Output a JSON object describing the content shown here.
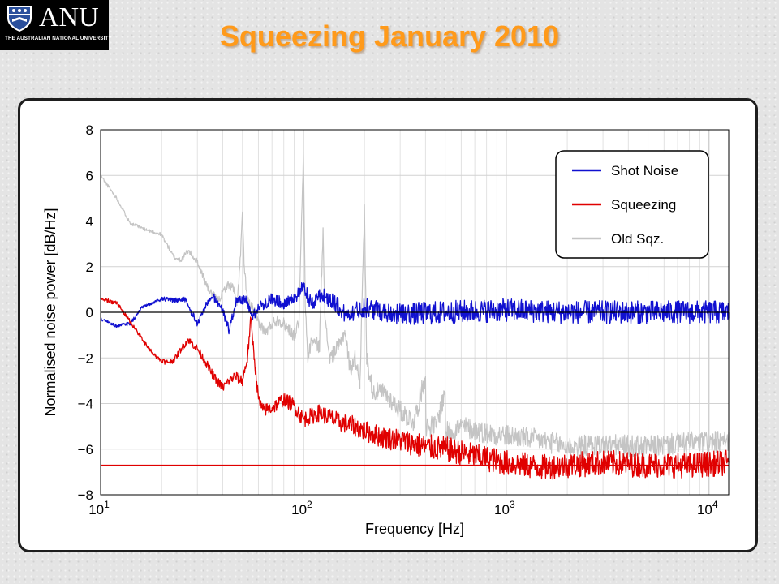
{
  "logo": {
    "name": "ANU",
    "university": "THE AUSTRALIAN NATIONAL UNIVERSITY",
    "colors": {
      "background": "#000000",
      "text": "#ffffff",
      "crest_blue": "#2a4f9c"
    }
  },
  "slide": {
    "title": "Squeezing January 2010",
    "title_color": "#ff9a1a"
  },
  "chart_data": {
    "type": "line",
    "xlabel": "Frequency [Hz]",
    "ylabel": "Normalised noise power [dB/Hz]",
    "xscale": "log",
    "xlim": [
      10,
      12500
    ],
    "ylim": [
      -8,
      8
    ],
    "grid": true,
    "x_ticks": [
      {
        "value": 10,
        "base": "10",
        "exp": "1"
      },
      {
        "value": 100,
        "base": "10",
        "exp": "2"
      },
      {
        "value": 1000,
        "base": "10",
        "exp": "3"
      },
      {
        "value": 10000,
        "base": "10",
        "exp": "4"
      }
    ],
    "y_ticks": [
      {
        "value": 8,
        "label": "8"
      },
      {
        "value": 6,
        "label": "6"
      },
      {
        "value": 4,
        "label": "4"
      },
      {
        "value": 2,
        "label": "2"
      },
      {
        "value": 0,
        "label": "0"
      },
      {
        "value": -2,
        "label": "−2"
      },
      {
        "value": -4,
        "label": "−4"
      },
      {
        "value": -6,
        "label": "−6"
      },
      {
        "value": -8,
        "label": "−8"
      }
    ],
    "reference_lines": [
      {
        "y": 0,
        "color": "#000000"
      },
      {
        "y": -6.7,
        "color": "#e00000"
      }
    ],
    "legend": {
      "position": "top-right",
      "entries": [
        {
          "name": "Shot Noise",
          "color": "#1010d0"
        },
        {
          "name": "Squeezing",
          "color": "#e00000"
        },
        {
          "name": "Old Sqz.",
          "color": "#c4c4c4"
        }
      ]
    },
    "series": [
      {
        "name": "Old Sqz.",
        "color": "#c4c4c4",
        "anchors": [
          [
            10,
            6.0
          ],
          [
            12,
            5.0
          ],
          [
            14,
            3.9
          ],
          [
            17,
            3.6
          ],
          [
            20,
            3.4
          ],
          [
            23,
            2.4
          ],
          [
            25,
            2.3
          ],
          [
            27,
            2.7
          ],
          [
            30,
            2.2
          ],
          [
            34,
            1.0
          ],
          [
            38,
            0.5
          ],
          [
            42,
            1.2
          ],
          [
            45,
            1.1
          ],
          [
            47,
            0.3
          ],
          [
            49,
            2.5
          ],
          [
            50,
            4.4
          ],
          [
            51,
            2.0
          ],
          [
            53,
            0.5
          ],
          [
            56,
            0.2
          ],
          [
            60,
            -0.4
          ],
          [
            65,
            -0.9
          ],
          [
            70,
            -0.5
          ],
          [
            75,
            -0.3
          ],
          [
            80,
            -0.5
          ],
          [
            90,
            -1.0
          ],
          [
            95,
            -0.5
          ],
          [
            100,
            7.0
          ],
          [
            102,
            0.5
          ],
          [
            105,
            -2.0
          ],
          [
            110,
            -1.2
          ],
          [
            120,
            -1.5
          ],
          [
            125,
            3.7
          ],
          [
            128,
            -0.5
          ],
          [
            135,
            -2.0
          ],
          [
            150,
            -1.5
          ],
          [
            160,
            -0.8
          ],
          [
            170,
            -2.5
          ],
          [
            180,
            -2.0
          ],
          [
            190,
            -3.0
          ],
          [
            200,
            4.5
          ],
          [
            205,
            -2.0
          ],
          [
            220,
            -3.5
          ],
          [
            250,
            -3.5
          ],
          [
            300,
            -4.3
          ],
          [
            350,
            -4.8
          ],
          [
            400,
            -2.8
          ],
          [
            402,
            -5.0
          ],
          [
            450,
            -5.0
          ],
          [
            500,
            -3.5
          ],
          [
            502,
            -5.3
          ],
          [
            600,
            -5.0
          ],
          [
            800,
            -5.3
          ],
          [
            1000,
            -5.4
          ],
          [
            1500,
            -5.6
          ],
          [
            2000,
            -5.9
          ],
          [
            3000,
            -5.8
          ],
          [
            5000,
            -5.9
          ],
          [
            8000,
            -5.7
          ],
          [
            12500,
            -5.7
          ]
        ],
        "noise": 0.3
      },
      {
        "name": "Shot Noise",
        "color": "#1010d0",
        "anchors": [
          [
            10,
            -0.3
          ],
          [
            12,
            -0.6
          ],
          [
            14,
            -0.5
          ],
          [
            16,
            0.2
          ],
          [
            18,
            0.4
          ],
          [
            20,
            0.6
          ],
          [
            23,
            0.5
          ],
          [
            26,
            0.6
          ],
          [
            28,
            0.0
          ],
          [
            30,
            -0.5
          ],
          [
            33,
            0.3
          ],
          [
            36,
            0.7
          ],
          [
            40,
            0.1
          ],
          [
            43,
            -0.8
          ],
          [
            47,
            0.6
          ],
          [
            52,
            0.5
          ],
          [
            56,
            -0.2
          ],
          [
            60,
            0.2
          ],
          [
            70,
            0.6
          ],
          [
            80,
            0.4
          ],
          [
            95,
            0.8
          ],
          [
            100,
            1.1
          ],
          [
            110,
            0.3
          ],
          [
            120,
            0.8
          ],
          [
            140,
            0.5
          ],
          [
            160,
            -0.1
          ],
          [
            200,
            0.2
          ],
          [
            300,
            -0.1
          ],
          [
            500,
            0.0
          ],
          [
            1000,
            0.1
          ],
          [
            2000,
            0.0
          ],
          [
            5000,
            0.0
          ],
          [
            12500,
            0.0
          ]
        ],
        "noise": 0.32
      },
      {
        "name": "Squeezing",
        "color": "#e00000",
        "anchors": [
          [
            10,
            0.6
          ],
          [
            12,
            0.4
          ],
          [
            13,
            0.0
          ],
          [
            15,
            -0.8
          ],
          [
            17,
            -1.5
          ],
          [
            19,
            -2.0
          ],
          [
            21,
            -2.2
          ],
          [
            23,
            -2.1
          ],
          [
            25,
            -1.6
          ],
          [
            27,
            -1.2
          ],
          [
            30,
            -1.6
          ],
          [
            33,
            -2.2
          ],
          [
            36,
            -2.8
          ],
          [
            40,
            -3.3
          ],
          [
            43,
            -3.0
          ],
          [
            46,
            -2.8
          ],
          [
            50,
            -3.0
          ],
          [
            53,
            -2.0
          ],
          [
            55,
            -0.3
          ],
          [
            57,
            -1.8
          ],
          [
            60,
            -3.8
          ],
          [
            63,
            -4.3
          ],
          [
            70,
            -4.2
          ],
          [
            80,
            -3.8
          ],
          [
            90,
            -4.1
          ],
          [
            100,
            -4.7
          ],
          [
            120,
            -4.4
          ],
          [
            150,
            -4.8
          ],
          [
            180,
            -5.0
          ],
          [
            200,
            -5.2
          ],
          [
            250,
            -5.5
          ],
          [
            300,
            -5.6
          ],
          [
            400,
            -5.9
          ],
          [
            500,
            -6.0
          ],
          [
            700,
            -6.3
          ],
          [
            1000,
            -6.6
          ],
          [
            1500,
            -6.8
          ],
          [
            2000,
            -6.7
          ],
          [
            3000,
            -6.6
          ],
          [
            5000,
            -6.7
          ],
          [
            8000,
            -6.7
          ],
          [
            12500,
            -6.6
          ]
        ],
        "noise": 0.35
      }
    ]
  }
}
